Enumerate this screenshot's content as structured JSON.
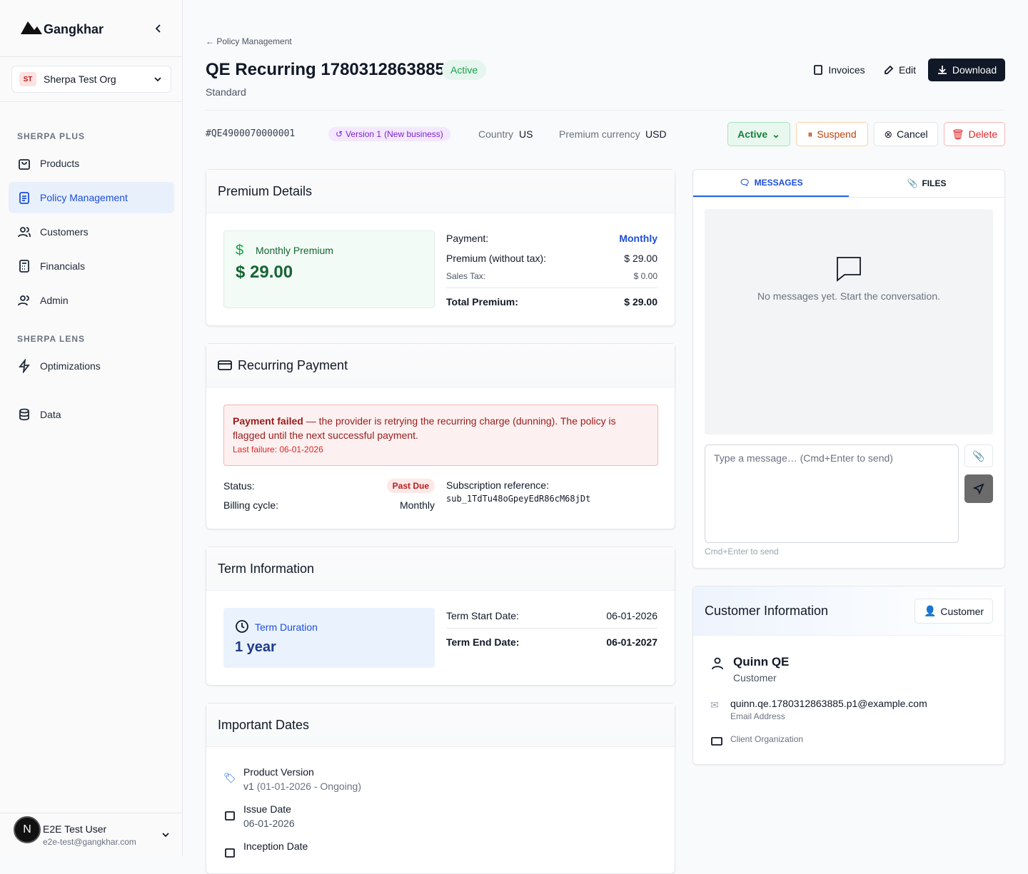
{
  "sidebar": {
    "brand": "Gangkhar",
    "org": {
      "initials": "ST",
      "name": "Sherpa Test Org"
    },
    "sections": [
      {
        "title": "SHERPA PLUS",
        "items": [
          "Products",
          "Policy Management",
          "Customers",
          "Financials",
          "Admin"
        ]
      },
      {
        "title": "SHERPA LENS",
        "items": [
          "Optimizations"
        ]
      }
    ],
    "extra_item": "Data",
    "user": {
      "initial": "N",
      "name": "E2E Test User",
      "email": "e2e-test@gangkhar.com"
    }
  },
  "header": {
    "breadcrumb": "Policy Management",
    "title": "QE Recurring 1780312863885",
    "status": "Active",
    "subtitle": "Standard",
    "actions": [
      "Invoices",
      "Edit",
      "Download"
    ]
  },
  "meta": {
    "id": "#QE4900070000001",
    "version": "Version 1",
    "version_note": "(New business)",
    "country_label": "Country",
    "country": "US",
    "currency_label": "Premium currency",
    "currency": "USD",
    "status_buttons": [
      "Active",
      "Suspend",
      "Cancel",
      "Delete"
    ]
  },
  "premium": {
    "title": "Premium Details",
    "card_label": "Monthly Premium",
    "card_amount": "$ 29.00",
    "rows": [
      [
        "Payment:",
        "Monthly"
      ],
      [
        "Premium (without tax):",
        "$ 29.00"
      ],
      [
        "Sales Tax:",
        "$ 0.00"
      ]
    ],
    "total": [
      "Total Premium:",
      "$ 29.00"
    ]
  },
  "recurring": {
    "title": "Recurring Payment",
    "alert_bold": "Payment failed",
    "alert_text": " — the provider is retrying the recurring charge (dunning). The policy is flagged until the next successful payment.",
    "alert_last": "Last failure: 06-01-2026",
    "status_label": "Status:",
    "status": "Past Due",
    "billing_label": "Billing cycle:",
    "billing": "Monthly",
    "sub_label": "Subscription reference:",
    "sub_ref": "sub_1TdTu48oGpeyEdR86cM68jDt"
  },
  "term": {
    "title": "Term Information",
    "duration_label": "Term Duration",
    "duration": "1 year",
    "rows": [
      [
        "Term Start Date:",
        "06-01-2026"
      ],
      [
        "Term End Date:",
        "06-01-2027"
      ]
    ]
  },
  "dates": {
    "title": "Important Dates",
    "items": [
      {
        "label": "Product Version",
        "value": "v1",
        "note": "(01-01-2026 - Ongoing)"
      },
      {
        "label": "Issue Date",
        "value": "06-01-2026"
      },
      {
        "label": "Inception Date"
      }
    ]
  },
  "messages": {
    "tabs": [
      "MESSAGES",
      "FILES"
    ],
    "empty": "No messages yet. Start the conversation.",
    "placeholder": "Type a message… (Cmd+Enter to send)",
    "hint": "Cmd+Enter to send"
  },
  "customer": {
    "title": "Customer Information",
    "button": "Customer",
    "name": "Quinn QE",
    "role": "Customer",
    "email": "quinn.qe.1780312863885.p1@example.com",
    "email_label": "Email Address",
    "org_label": "Client Organization"
  }
}
